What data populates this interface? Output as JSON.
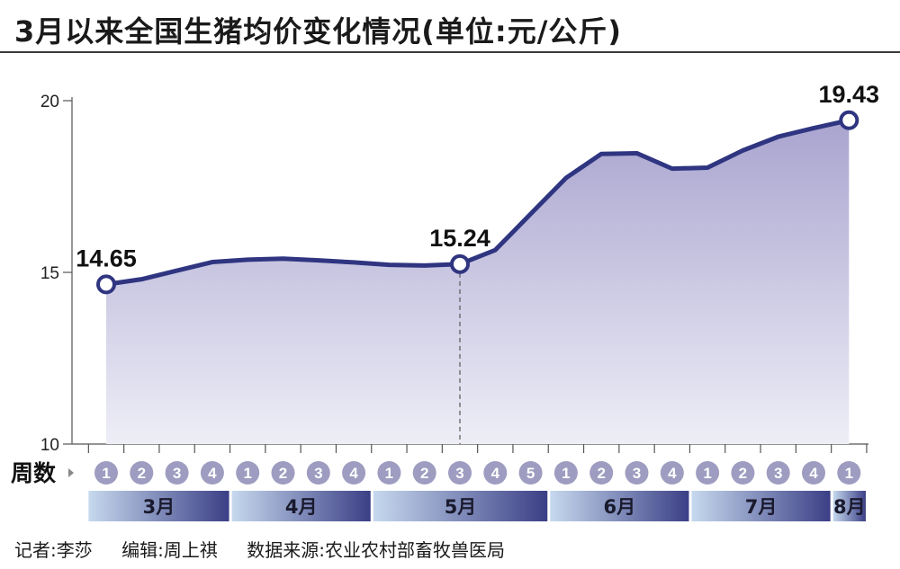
{
  "title": "3月以来全国生猪均价变化情况(单位:元/公斤)",
  "footer": {
    "reporter": "记者:李莎",
    "editor": "编辑:周上祺",
    "source": "数据来源:农业农村部畜牧兽医局"
  },
  "colors": {
    "line": "#2f3580",
    "fill_top": "#a9a4cf",
    "fill_bottom": "#eeeef7",
    "week_circle": "#9e9cc0",
    "month_bar_light": "#c6d9ee",
    "month_bar_dark": "#3b3f86"
  },
  "chart_data": {
    "type": "line",
    "title": "3月以来全国生猪均价变化情况(单位:元/公斤)",
    "ylim": [
      10,
      20
    ],
    "y_ticks": [
      "10",
      "15",
      "20"
    ],
    "y_tick_values": [
      10,
      15,
      20
    ],
    "week_axis_label": "周数",
    "weeks": [
      "1",
      "2",
      "3",
      "4",
      "1",
      "2",
      "3",
      "4",
      "1",
      "2",
      "3",
      "4",
      "5",
      "1",
      "2",
      "3",
      "4",
      "1",
      "2",
      "3",
      "4",
      "1"
    ],
    "months": [
      {
        "label": "3月",
        "weeks": 4
      },
      {
        "label": "4月",
        "weeks": 4
      },
      {
        "label": "5月",
        "weeks": 5
      },
      {
        "label": "6月",
        "weeks": 4
      },
      {
        "label": "7月",
        "weeks": 4
      },
      {
        "label": "8月",
        "weeks": 1
      }
    ],
    "values": [
      14.65,
      14.8,
      15.05,
      15.3,
      15.37,
      15.4,
      15.35,
      15.29,
      15.22,
      15.2,
      15.24,
      15.65,
      16.7,
      17.75,
      18.45,
      18.47,
      18.02,
      18.05,
      18.55,
      18.95,
      19.2,
      19.43
    ],
    "callouts": [
      {
        "index": 0,
        "label": "14.65"
      },
      {
        "index": 10,
        "label": "15.24"
      },
      {
        "index": 21,
        "label": "19.43"
      }
    ],
    "dashed_marker_index": 10
  }
}
